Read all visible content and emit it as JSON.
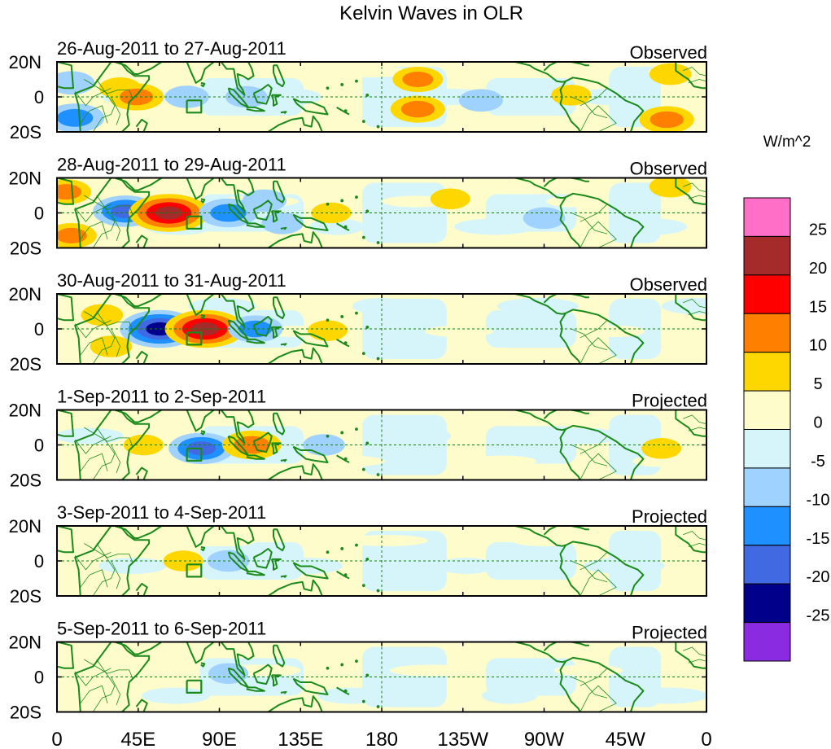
{
  "chart_data": {
    "type": "heatmap",
    "title": "Kelvin Waves in OLR",
    "variable": "OLR anomaly",
    "xlabel": "",
    "ylabel": "",
    "x_ticks": [
      "0",
      "45E",
      "90E",
      "135E",
      "180",
      "135W",
      "90W",
      "45W",
      "0"
    ],
    "y_ticks": [
      "20N",
      "0",
      "20S"
    ],
    "xlim_deg_east": [
      0,
      360
    ],
    "ylim_deg": [
      -20,
      20
    ],
    "colorbar": {
      "units": "W/m^2",
      "levels": [
        25,
        20,
        15,
        10,
        5,
        0,
        -5,
        -10,
        -15,
        -20,
        -25
      ],
      "level_labels": [
        "25",
        "20",
        "15",
        "10",
        "5",
        "0",
        "-5",
        "-10",
        "-15",
        "-20",
        "-25"
      ],
      "colors": [
        "#ff6ec7",
        "#a52a2a",
        "#ff0000",
        "#ff7f00",
        "#ffd700",
        "#fffccc",
        "#d5f5fa",
        "#a0d2ff",
        "#1e90ff",
        "#4169e1",
        "#00008b",
        "#8a2be2"
      ]
    },
    "panels": [
      {
        "date_range": "26-Aug-2011 to 27-Aug-2011",
        "label": "Observed",
        "anomalies": [
          {
            "lon": 8,
            "lat": 8,
            "value": -8
          },
          {
            "lon": 10,
            "lat": -12,
            "value": -14
          },
          {
            "lon": 35,
            "lat": 5,
            "value": 6
          },
          {
            "lon": 44,
            "lat": 0,
            "value": 12
          },
          {
            "lon": 72,
            "lat": 0,
            "value": -7
          },
          {
            "lon": 105,
            "lat": 0,
            "value": -6
          },
          {
            "lon": 200,
            "lat": 10,
            "value": 10
          },
          {
            "lon": 200,
            "lat": -7,
            "value": 12
          },
          {
            "lon": 235,
            "lat": -2,
            "value": -7
          },
          {
            "lon": 285,
            "lat": 1,
            "value": 5
          },
          {
            "lon": 340,
            "lat": 13,
            "value": 6
          },
          {
            "lon": 338,
            "lat": -13,
            "value": 12
          }
        ]
      },
      {
        "date_range": "28-Aug-2011 to 29-Aug-2011",
        "label": "Observed",
        "anomalies": [
          {
            "lon": 5,
            "lat": 12,
            "value": 10
          },
          {
            "lon": 8,
            "lat": -13,
            "value": 10
          },
          {
            "lon": 38,
            "lat": 1,
            "value": -17
          },
          {
            "lon": 62,
            "lat": 0,
            "value": 24
          },
          {
            "lon": 95,
            "lat": 0,
            "value": -14
          },
          {
            "lon": 115,
            "lat": 7,
            "value": -7
          },
          {
            "lon": 125,
            "lat": -6,
            "value": -6
          },
          {
            "lon": 152,
            "lat": 0,
            "value": 5
          },
          {
            "lon": 218,
            "lat": 8,
            "value": 5
          },
          {
            "lon": 270,
            "lat": -3,
            "value": -6
          },
          {
            "lon": 340,
            "lat": 15,
            "value": 6
          }
        ]
      },
      {
        "date_range": "30-Aug-2011 to 31-Aug-2011",
        "label": "Observed",
        "anomalies": [
          {
            "lon": 25,
            "lat": 8,
            "value": 6
          },
          {
            "lon": 30,
            "lat": -10,
            "value": 6
          },
          {
            "lon": 57,
            "lat": 0,
            "value": -24
          },
          {
            "lon": 82,
            "lat": 0,
            "value": 24
          },
          {
            "lon": 110,
            "lat": 0,
            "value": -12
          },
          {
            "lon": 150,
            "lat": -1,
            "value": 5
          }
        ]
      },
      {
        "date_range": "1-Sep-2011 to 2-Sep-2011",
        "label": "Projected",
        "anomalies": [
          {
            "lon": 48,
            "lat": 0,
            "value": 5
          },
          {
            "lon": 80,
            "lat": -2,
            "value": -17
          },
          {
            "lon": 108,
            "lat": 0,
            "value": 14
          },
          {
            "lon": 148,
            "lat": 0,
            "value": -6
          },
          {
            "lon": 335,
            "lat": -2,
            "value": 5
          }
        ]
      },
      {
        "date_range": "3-Sep-2011 to 4-Sep-2011",
        "label": "Projected",
        "anomalies": [
          {
            "lon": 70,
            "lat": 0,
            "value": 5
          },
          {
            "lon": 95,
            "lat": 0,
            "value": -6
          }
        ]
      },
      {
        "date_range": "5-Sep-2011 to 6-Sep-2011",
        "label": "Projected",
        "anomalies": [
          {
            "lon": 95,
            "lat": 2,
            "value": -5
          }
        ]
      }
    ]
  }
}
